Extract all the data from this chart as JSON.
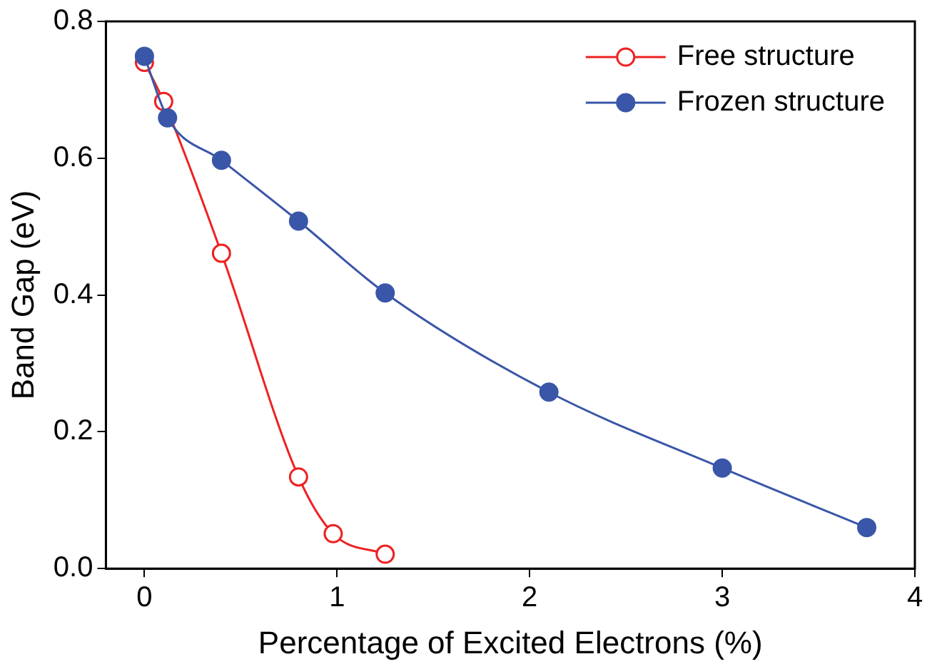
{
  "chart_data": {
    "type": "line",
    "xlabel": "Percentage of Excited Electrons (%)",
    "ylabel": "Band Gap (eV)",
    "xlim": [
      -0.2,
      4
    ],
    "xticks": [
      0,
      1,
      2,
      3,
      4
    ],
    "ylim": [
      0,
      0.8
    ],
    "yticks": [
      {
        "value": 0,
        "label": "0.0"
      },
      0.2,
      0.4,
      0.6,
      0.8
    ],
    "legend": "top right",
    "marker": "circle",
    "grid": false,
    "series": [
      {
        "name": "Free structure",
        "color": "#ee2222",
        "x": [
          0,
          0.1,
          0.4,
          0.8,
          0.98,
          1.25
        ],
        "values": [
          0.74,
          0.683,
          0.461,
          0.134,
          0.051,
          0.021
        ]
      },
      {
        "name": "Frozen structure",
        "color": "#3a56a8",
        "x": [
          0,
          0.12,
          0.4,
          0.8,
          1.25,
          2.1,
          3.0,
          3.75
        ],
        "values": [
          0.749,
          0.659,
          0.597,
          0.508,
          0.403,
          0.258,
          0.147,
          0.06
        ]
      }
    ]
  }
}
